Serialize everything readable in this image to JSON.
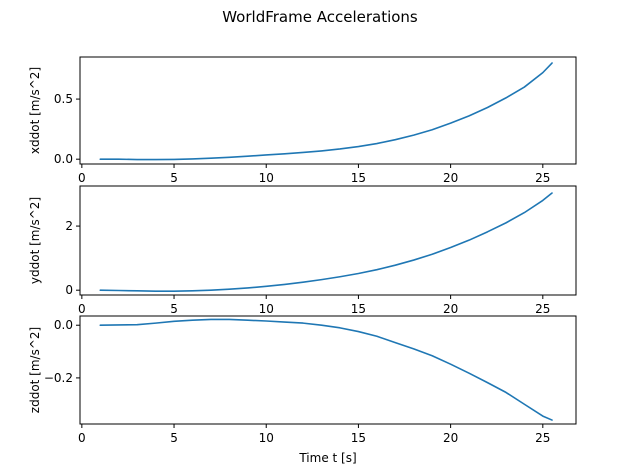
{
  "title": "WorldFrame Accelerations",
  "line_color": "#1f77b4",
  "chart_data": [
    {
      "type": "line",
      "xlabel": "",
      "ylabel": "xddot [m/s^2]",
      "xlim": [
        -0.1,
        26.8
      ],
      "ylim": [
        -0.04,
        0.85
      ],
      "xticks": [
        0,
        5,
        10,
        15,
        20,
        25
      ],
      "yticks": [
        0.0,
        0.5
      ],
      "ytick_labels": [
        "0.0",
        "0.5"
      ],
      "grid": false,
      "series": [
        {
          "x": [
            1,
            2,
            3,
            4,
            5,
            6,
            7,
            8,
            9,
            10,
            11,
            12,
            13,
            14,
            15,
            16,
            17,
            18,
            19,
            20,
            21,
            22,
            23,
            24,
            25,
            25.5
          ],
          "y": [
            0.0,
            0.0,
            -0.003,
            -0.003,
            -0.002,
            0.002,
            0.008,
            0.016,
            0.025,
            0.035,
            0.045,
            0.056,
            0.069,
            0.085,
            0.105,
            0.13,
            0.162,
            0.2,
            0.245,
            0.3,
            0.36,
            0.43,
            0.51,
            0.6,
            0.72,
            0.8
          ]
        }
      ]
    },
    {
      "type": "line",
      "xlabel": "",
      "ylabel": "yddot [m/s^2]",
      "xlim": [
        -0.1,
        26.8
      ],
      "ylim": [
        -0.15,
        3.25
      ],
      "xticks": [
        0,
        5,
        10,
        15,
        20,
        25
      ],
      "yticks": [
        0,
        2
      ],
      "ytick_labels": [
        "0",
        "2"
      ],
      "grid": false,
      "series": [
        {
          "x": [
            1,
            2,
            3,
            4,
            5,
            6,
            7,
            8,
            9,
            10,
            11,
            12,
            13,
            14,
            15,
            16,
            17,
            18,
            19,
            20,
            21,
            22,
            23,
            24,
            25,
            25.5
          ],
          "y": [
            0.0,
            -0.01,
            -0.02,
            -0.03,
            -0.03,
            -0.02,
            0.0,
            0.03,
            0.07,
            0.12,
            0.18,
            0.25,
            0.33,
            0.42,
            0.52,
            0.64,
            0.78,
            0.94,
            1.12,
            1.33,
            1.56,
            1.82,
            2.1,
            2.42,
            2.8,
            3.03
          ]
        }
      ]
    },
    {
      "type": "line",
      "xlabel": "Time t [s]",
      "ylabel": "zddot [m/s^2]",
      "xlim": [
        -0.1,
        26.8
      ],
      "ylim": [
        -0.375,
        0.035
      ],
      "xticks": [
        0,
        5,
        10,
        15,
        20,
        25
      ],
      "yticks": [
        0.0,
        -0.2
      ],
      "ytick_labels": [
        "0.0",
        "−0.2"
      ],
      "grid": false,
      "series": [
        {
          "x": [
            1,
            2,
            3,
            4,
            5,
            6,
            7,
            8,
            9,
            10,
            11,
            12,
            13,
            14,
            15,
            16,
            17,
            18,
            19,
            20,
            21,
            22,
            23,
            24,
            25,
            25.5
          ],
          "y": [
            0.0,
            0.001,
            0.002,
            0.008,
            0.015,
            0.019,
            0.022,
            0.022,
            0.019,
            0.016,
            0.012,
            0.008,
            0.0,
            -0.01,
            -0.024,
            -0.042,
            -0.066,
            -0.09,
            -0.116,
            -0.148,
            -0.182,
            -0.218,
            -0.255,
            -0.3,
            -0.345,
            -0.36
          ]
        }
      ]
    }
  ]
}
